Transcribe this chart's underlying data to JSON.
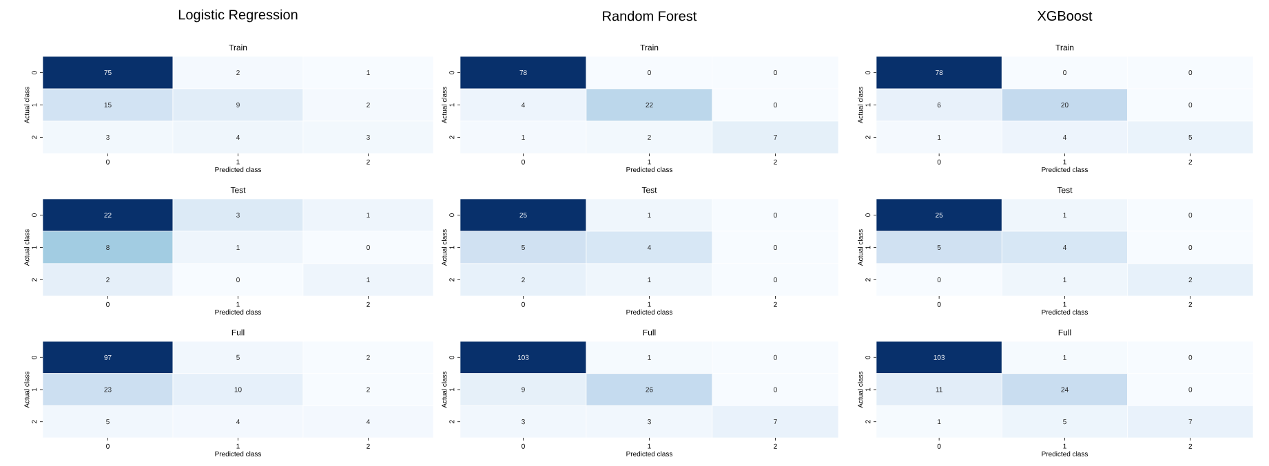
{
  "chart_data": [
    {
      "type": "heatmap",
      "title": "Logistic Regression",
      "subtitle": "Train",
      "xlabel": "Predicted class",
      "ylabel": "Actual class",
      "categories": [
        "0",
        "1",
        "2"
      ],
      "y_categories": [
        "0",
        "1",
        "2"
      ],
      "cells": [
        [
          75,
          2,
          1
        ],
        [
          15,
          9,
          2
        ],
        [
          3,
          4,
          3
        ]
      ],
      "data_labels": true
    },
    {
      "type": "heatmap",
      "title": "Random Forest",
      "subtitle": "Train",
      "xlabel": "Predicted class",
      "ylabel": "Actual class",
      "categories": [
        "0",
        "1",
        "2"
      ],
      "y_categories": [
        "0",
        "1",
        "2"
      ],
      "cells": [
        [
          78,
          0,
          0
        ],
        [
          4,
          22,
          0
        ],
        [
          1,
          2,
          7
        ]
      ],
      "data_labels": true
    },
    {
      "type": "heatmap",
      "title": "XGBoost",
      "subtitle": "Train",
      "xlabel": "Predicted class",
      "ylabel": "Actual class",
      "categories": [
        "0",
        "1",
        "2"
      ],
      "y_categories": [
        "0",
        "1",
        "2"
      ],
      "cells": [
        [
          78,
          0,
          0
        ],
        [
          6,
          20,
          0
        ],
        [
          1,
          4,
          5
        ]
      ],
      "data_labels": true
    },
    {
      "type": "heatmap",
      "title": "Test",
      "xlabel": "Predicted class",
      "ylabel": "Actual class",
      "categories": [
        "0",
        "1",
        "2"
      ],
      "y_categories": [
        "0",
        "1",
        "2"
      ],
      "cells": [
        [
          22,
          3,
          1
        ],
        [
          8,
          1,
          0
        ],
        [
          2,
          0,
          1
        ]
      ],
      "data_labels": true
    },
    {
      "type": "heatmap",
      "title": "Test",
      "xlabel": "Predicted class",
      "ylabel": "Actual class",
      "categories": [
        "0",
        "1",
        "2"
      ],
      "y_categories": [
        "0",
        "1",
        "2"
      ],
      "cells": [
        [
          25,
          1,
          0
        ],
        [
          5,
          4,
          0
        ],
        [
          2,
          1,
          0
        ]
      ],
      "data_labels": true
    },
    {
      "type": "heatmap",
      "title": "Test",
      "xlabel": "Predicted class",
      "ylabel": "Actual class",
      "categories": [
        "0",
        "1",
        "2"
      ],
      "y_categories": [
        "0",
        "1",
        "2"
      ],
      "cells": [
        [
          25,
          1,
          0
        ],
        [
          5,
          4,
          0
        ],
        [
          0,
          1,
          2
        ]
      ],
      "data_labels": true
    },
    {
      "type": "heatmap",
      "title": "Full",
      "xlabel": "Predicted class",
      "ylabel": "Actual class",
      "categories": [
        "0",
        "1",
        "2"
      ],
      "y_categories": [
        "0",
        "1",
        "2"
      ],
      "cells": [
        [
          97,
          5,
          2
        ],
        [
          23,
          10,
          2
        ],
        [
          5,
          4,
          4
        ]
      ],
      "data_labels": true
    },
    {
      "type": "heatmap",
      "title": "Full",
      "xlabel": "Predicted class",
      "ylabel": "Actual class",
      "categories": [
        "0",
        "1",
        "2"
      ],
      "y_categories": [
        "0",
        "1",
        "2"
      ],
      "cells": [
        [
          103,
          1,
          0
        ],
        [
          9,
          26,
          0
        ],
        [
          3,
          3,
          7
        ]
      ],
      "data_labels": true
    },
    {
      "type": "heatmap",
      "title": "Full",
      "xlabel": "Predicted class",
      "ylabel": "Actual class",
      "categories": [
        "0",
        "1",
        "2"
      ],
      "y_categories": [
        "0",
        "1",
        "2"
      ],
      "cells": [
        [
          103,
          1,
          0
        ],
        [
          11,
          24,
          0
        ],
        [
          1,
          5,
          7
        ]
      ],
      "data_labels": true
    }
  ]
}
